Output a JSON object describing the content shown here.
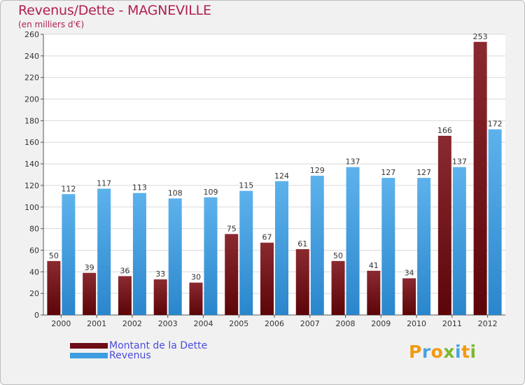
{
  "title": "Revenus/Dette - MAGNEVILLE",
  "subtitle": "(en milliers d'€)",
  "logo": {
    "letters": [
      "P",
      "r",
      "o",
      "x",
      "i",
      "t",
      "i"
    ],
    "colors": [
      "#f29a12",
      "#4aa3df",
      "#f29a12",
      "#7ab82f",
      "#4aa3df",
      "#f29a12",
      "#7ab82f"
    ]
  },
  "colors": {
    "dette": "#6d0d16",
    "revenus": "#3d9de0",
    "title": "#b0204f",
    "legend_text": "#4c4cde"
  },
  "chart_data": {
    "type": "bar",
    "categories": [
      "2000",
      "2001",
      "2002",
      "2003",
      "2004",
      "2005",
      "2006",
      "2007",
      "2008",
      "2009",
      "2010",
      "2011",
      "2012"
    ],
    "series": [
      {
        "name": "Montant de la Dette",
        "values": [
          50,
          39,
          36,
          33,
          30,
          75,
          67,
          61,
          50,
          41,
          34,
          166,
          253
        ]
      },
      {
        "name": "Revenus",
        "values": [
          112,
          117,
          113,
          108,
          109,
          115,
          124,
          129,
          137,
          127,
          127,
          137,
          172
        ]
      }
    ],
    "yticks": [
      0,
      20,
      40,
      60,
      80,
      100,
      120,
      140,
      160,
      180,
      200,
      220,
      240,
      260
    ],
    "ylim": [
      0,
      260
    ],
    "grid": true,
    "legend_position": "bottom-left"
  }
}
